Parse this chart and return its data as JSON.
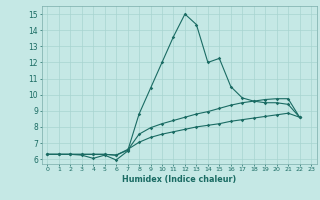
{
  "xlabel": "Humidex (Indice chaleur)",
  "xlim": [
    -0.5,
    23.5
  ],
  "ylim": [
    5.7,
    15.5
  ],
  "xticks": [
    0,
    1,
    2,
    3,
    4,
    5,
    6,
    7,
    8,
    9,
    10,
    11,
    12,
    13,
    14,
    15,
    16,
    17,
    18,
    19,
    20,
    21,
    22,
    23
  ],
  "yticks": [
    6,
    7,
    8,
    9,
    10,
    11,
    12,
    13,
    14,
    15
  ],
  "bg_color": "#c5e8e5",
  "grid_color": "#a8d4d0",
  "line_color": "#1a6b63",
  "line1_x": [
    0,
    1,
    2,
    3,
    4,
    5,
    6,
    7,
    8,
    9,
    10,
    11,
    12,
    13,
    14,
    15,
    16,
    17,
    18,
    19,
    20,
    21,
    22
  ],
  "line1_y": [
    6.3,
    6.3,
    6.3,
    6.25,
    6.05,
    6.25,
    5.95,
    6.5,
    8.8,
    10.4,
    12.0,
    13.6,
    15.0,
    14.35,
    12.0,
    12.25,
    10.5,
    9.8,
    9.6,
    9.5,
    9.5,
    9.4,
    8.6
  ],
  "line2_x": [
    0,
    1,
    2,
    3,
    4,
    5,
    6,
    7,
    8,
    9,
    10,
    11,
    12,
    13,
    14,
    15,
    16,
    17,
    18,
    19,
    20,
    21,
    22
  ],
  "line2_y": [
    6.3,
    6.3,
    6.3,
    6.3,
    6.3,
    6.3,
    6.25,
    6.55,
    7.55,
    7.95,
    8.2,
    8.4,
    8.6,
    8.8,
    8.95,
    9.15,
    9.35,
    9.5,
    9.6,
    9.7,
    9.75,
    9.75,
    8.6
  ],
  "line3_x": [
    0,
    1,
    2,
    3,
    4,
    5,
    6,
    7,
    8,
    9,
    10,
    11,
    12,
    13,
    14,
    15,
    16,
    17,
    18,
    19,
    20,
    21,
    22
  ],
  "line3_y": [
    6.3,
    6.3,
    6.3,
    6.3,
    6.3,
    6.3,
    6.25,
    6.6,
    7.05,
    7.35,
    7.55,
    7.7,
    7.85,
    8.0,
    8.1,
    8.2,
    8.35,
    8.45,
    8.55,
    8.65,
    8.75,
    8.85,
    8.6
  ]
}
